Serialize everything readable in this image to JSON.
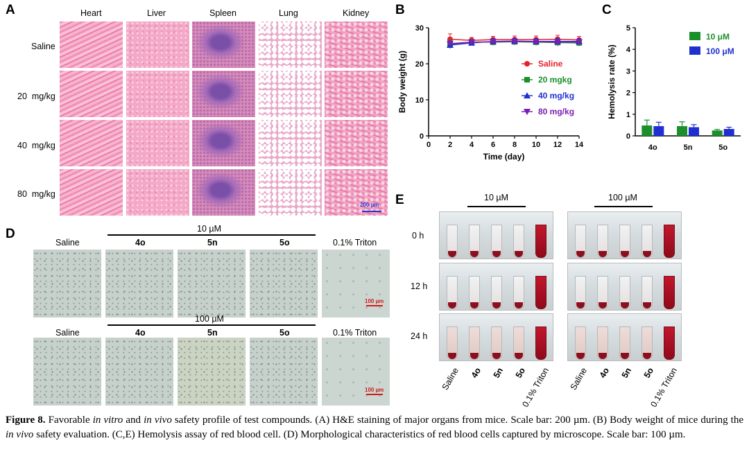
{
  "panelA": {
    "label": "A",
    "organs": [
      "Heart",
      "Liver",
      "Spleen",
      "Lung",
      "Kidney"
    ],
    "groups": [
      "Saline",
      "20  mg/kg",
      "40  mg/kg",
      "80  mg/kg"
    ],
    "scalebar": "200 µm"
  },
  "panelB": {
    "label": "B"
  },
  "panelC": {
    "label": "C"
  },
  "panelD": {
    "label": "D",
    "row1_conc": "10 µM",
    "row2_conc": "100 µM",
    "columns": [
      "Saline",
      "4o",
      "5n",
      "5o",
      "0.1% Triton"
    ],
    "scalebar": "100 µm"
  },
  "panelE": {
    "label": "E",
    "conc_left": "10 µM",
    "conc_right": "100 µM",
    "times": [
      "0 h",
      "12 h",
      "24 h"
    ],
    "tubes": [
      "Saline",
      "4o",
      "5n",
      "5o",
      "0.1% Triton"
    ]
  },
  "caption": {
    "figure_no": "Figure 8.",
    "text_part1": " Favorable ",
    "italic1": "in vitro",
    "text_part2": " and ",
    "italic2": "in vivo",
    "text_part3": " safety profile of test compounds. (A) H&E staining of major organs from mice. Scale bar: 200 µm. (B) Body weight of mice during the ",
    "italic3": "in vivo",
    "text_part4": " safety evaluation. (C,E) Hemolysis assay of red blood cell. (D) Morphological characteristics of red blood cells captured by microscope. Scale bar: 100 µm."
  },
  "chart_data": [
    {
      "type": "line",
      "xlabel": "Time (day)",
      "ylabel": "Body weight (g)",
      "xlim": [
        0,
        14
      ],
      "ylim": [
        0,
        30
      ],
      "xticks": [
        0,
        2,
        4,
        6,
        8,
        10,
        12,
        14
      ],
      "yticks": [
        0,
        10,
        20,
        30
      ],
      "legend_position": "right",
      "x": [
        2,
        4,
        6,
        8,
        10,
        12,
        14
      ],
      "series": [
        {
          "name": "Saline",
          "color": "#e8202a",
          "marker": "circle",
          "values": [
            26.8,
            26.5,
            26.7,
            26.7,
            26.7,
            26.8,
            26.6
          ],
          "err": [
            1.5,
            0.8,
            0.9,
            1.0,
            1.0,
            1.1,
            1.0
          ]
        },
        {
          "name": "20 mgkg",
          "color": "#1a8f2a",
          "marker": "square",
          "values": [
            25.4,
            26.0,
            26.0,
            26.1,
            26.0,
            25.9,
            25.8
          ],
          "err": [
            1.2,
            0.8,
            0.9,
            0.9,
            0.9,
            1.0,
            0.9
          ]
        },
        {
          "name": "40 mg/kg",
          "color": "#1f2fd0",
          "marker": "triangle-up",
          "values": [
            25.2,
            25.8,
            26.2,
            26.3,
            26.2,
            26.2,
            26.2
          ],
          "err": [
            1.0,
            0.7,
            0.8,
            0.8,
            0.8,
            0.9,
            0.8
          ]
        },
        {
          "name": "80 mg/kg",
          "color": "#7a1fb0",
          "marker": "triangle-down",
          "values": [
            25.6,
            26.0,
            26.1,
            26.2,
            26.1,
            26.0,
            26.0
          ],
          "err": [
            0.8,
            0.7,
            0.7,
            0.7,
            0.7,
            0.8,
            0.7
          ]
        }
      ]
    },
    {
      "type": "bar",
      "xlabel": "",
      "ylabel": "Hemolysis rate (%)",
      "ylim": [
        0,
        5
      ],
      "yticks": [
        0,
        1,
        2,
        3,
        4,
        5
      ],
      "legend_position": "top-right",
      "categories": [
        "4o",
        "5n",
        "5o"
      ],
      "series": [
        {
          "name": "10 μM",
          "color": "#1a8f2a",
          "values": [
            0.48,
            0.45,
            0.25
          ],
          "err": [
            0.25,
            0.2,
            0.05
          ]
        },
        {
          "name": "100 μM",
          "color": "#1f2fd0",
          "values": [
            0.45,
            0.4,
            0.32
          ],
          "err": [
            0.18,
            0.12,
            0.08
          ]
        }
      ]
    }
  ]
}
